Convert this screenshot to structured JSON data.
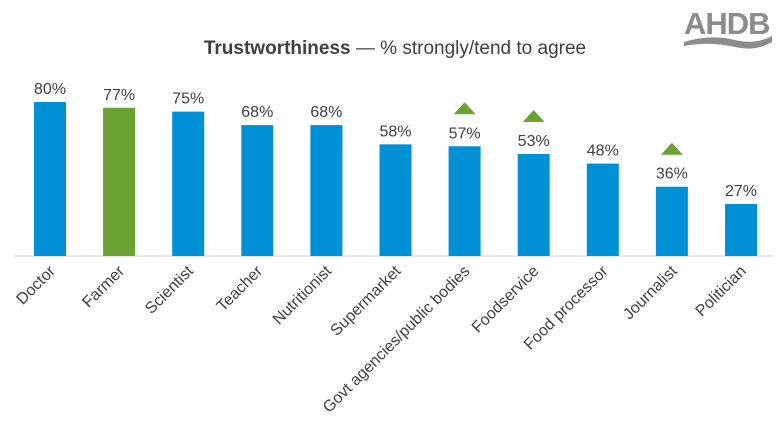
{
  "logo": {
    "text": "AHDB"
  },
  "chart_data": {
    "type": "bar",
    "title_bold": "Trustworthiness",
    "title_rest": " — % strongly/tend to agree",
    "categories": [
      "Doctor",
      "Farmer",
      "Scientist",
      "Teacher",
      "Nutritionist",
      "Supermarket",
      "Govt agencies/public bodies",
      "Foodservice",
      "Food processor",
      "Journalist",
      "Politician"
    ],
    "values": [
      80,
      77,
      75,
      68,
      68,
      58,
      57,
      53,
      48,
      36,
      27
    ],
    "value_labels": [
      "80%",
      "77%",
      "75%",
      "68%",
      "68%",
      "58%",
      "57%",
      "53%",
      "48%",
      "36%",
      "27%"
    ],
    "increase_markers": [
      false,
      false,
      false,
      false,
      false,
      false,
      true,
      true,
      false,
      true,
      false
    ],
    "highlight": "Farmer",
    "ylim": [
      0,
      100
    ],
    "grid": false,
    "colors": {
      "bar": "#0090d6",
      "highlight": "#6aa332",
      "marker": "#6aa332",
      "logo": "#8c8c8c"
    }
  }
}
